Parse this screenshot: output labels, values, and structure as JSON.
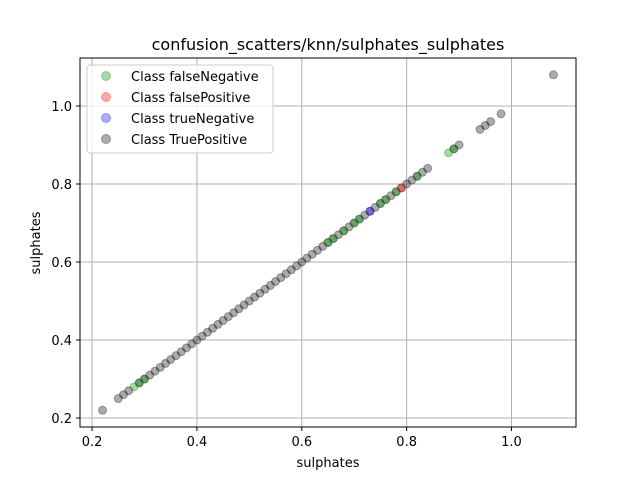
{
  "chart_data": {
    "type": "scatter",
    "title": "confusion_scatters/knn/sulphates_sulphates",
    "xlabel": "sulphates",
    "ylabel": "sulphates",
    "xlim": [
      0.177,
      1.123
    ],
    "ylim": [
      0.177,
      1.123
    ],
    "xticks": [
      0.2,
      0.4,
      0.6,
      0.8,
      1.0
    ],
    "yticks": [
      0.2,
      0.4,
      0.6,
      0.8,
      1.0
    ],
    "xtick_labels": [
      "0.2",
      "0.4",
      "0.6",
      "0.8",
      "1.0"
    ],
    "ytick_labels": [
      "0.2",
      "0.4",
      "0.6",
      "0.8",
      "1.0"
    ],
    "grid": true,
    "legend_position": "top-left",
    "series": [
      {
        "name": "Class falseNegative",
        "color": "#008000",
        "values": [
          0.28,
          0.29,
          0.3,
          0.65,
          0.66,
          0.68,
          0.7,
          0.71,
          0.75,
          0.76,
          0.78,
          0.82,
          0.88,
          0.89
        ]
      },
      {
        "name": "Class falsePositive",
        "color": "#ff0000",
        "values": [
          0.79
        ]
      },
      {
        "name": "Class trueNegative",
        "color": "#0000ff",
        "values": [
          0.73
        ]
      },
      {
        "name": "Class TruePositive",
        "color": "#000000",
        "values": [
          0.22,
          0.25,
          0.26,
          0.27,
          0.29,
          0.3,
          0.31,
          0.32,
          0.33,
          0.34,
          0.35,
          0.36,
          0.37,
          0.38,
          0.39,
          0.4,
          0.41,
          0.42,
          0.43,
          0.44,
          0.45,
          0.46,
          0.47,
          0.48,
          0.49,
          0.5,
          0.51,
          0.52,
          0.53,
          0.54,
          0.55,
          0.56,
          0.57,
          0.58,
          0.59,
          0.6,
          0.61,
          0.62,
          0.63,
          0.64,
          0.65,
          0.66,
          0.67,
          0.68,
          0.69,
          0.7,
          0.71,
          0.72,
          0.73,
          0.74,
          0.75,
          0.76,
          0.77,
          0.78,
          0.79,
          0.8,
          0.81,
          0.82,
          0.83,
          0.84,
          0.89,
          0.9,
          0.94,
          0.95,
          0.96,
          0.98,
          1.08
        ]
      }
    ]
  }
}
